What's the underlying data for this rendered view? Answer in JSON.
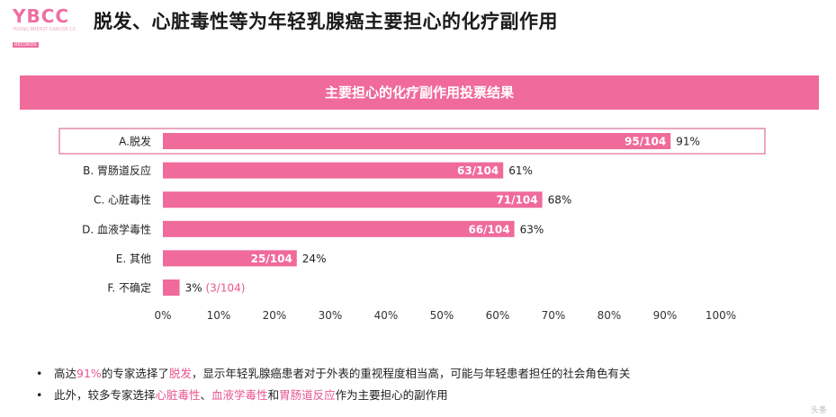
{
  "logo": {
    "text": "YBCC",
    "subtitle": "YOUNG BREAST CANCER CONFERENCE",
    "tag": "RECORDS"
  },
  "title": "脱发、心脏毒性等为年轻乳腺癌主要担心的化疗副作用",
  "colors": {
    "accent": "#f06a9a",
    "highlight_text": "#e8578f",
    "highlight_box": "#e07aa0"
  },
  "chart_data": {
    "type": "bar",
    "orientation": "horizontal",
    "title": "主要担心的化疗副作用投票结果",
    "categories": [
      "A.脱发",
      "B. 胃肠道反应",
      "C. 心脏毒性",
      "D. 血液学毒性",
      "E. 其他",
      "F. 不确定"
    ],
    "values": [
      91,
      61,
      68,
      63,
      24,
      3
    ],
    "counts": [
      "95/104",
      "63/104",
      "71/104",
      "66/104",
      "25/104",
      "3/104"
    ],
    "value_labels": [
      "91%",
      "61%",
      "68%",
      "63%",
      "24%",
      "3%"
    ],
    "extra_label_last": "(3/104)",
    "xlim": [
      0,
      100
    ],
    "xticks": [
      "0%",
      "10%",
      "20%",
      "30%",
      "40%",
      "50%",
      "60%",
      "70%",
      "80%",
      "90%",
      "100%"
    ],
    "highlighted_category": "A.脱发",
    "grid": false,
    "legend": "none"
  },
  "notes": {
    "n1": {
      "p1": "高达",
      "h1": "91%",
      "p2": "的专家选择了",
      "h2": "脱发",
      "p3": "，显示年轻乳腺癌患者对于外表的重视程度相当高，可能与年轻患者担任的社会角色有关"
    },
    "n2": {
      "p1": "此外，较多专家选择",
      "h1": "心脏毒性",
      "p2": "、",
      "h2": "血液学毒性",
      "p3": "和",
      "h3": "胃肠道反应",
      "p4": "作为主要担心的副作用"
    }
  },
  "watermark": "头条"
}
